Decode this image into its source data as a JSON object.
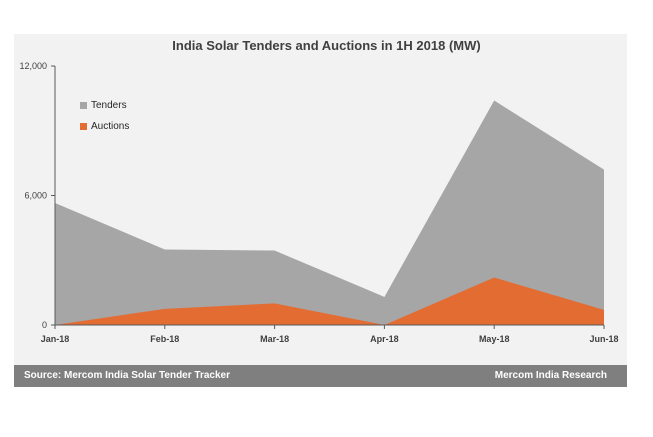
{
  "chart_data": {
    "type": "area",
    "title": "India Solar Tenders and Auctions in 1H 2018 (MW)",
    "categories": [
      "Jan-18",
      "Feb-18",
      "Mar-18",
      "Apr-18",
      "May-18",
      "Jun-18"
    ],
    "series": [
      {
        "name": "Tenders",
        "values": [
          5650,
          3500,
          3450,
          1300,
          10400,
          7200
        ],
        "color": "#a6a6a6"
      },
      {
        "name": "Auctions",
        "values": [
          0,
          750,
          1000,
          0,
          2200,
          700
        ],
        "color": "#e36c33"
      }
    ],
    "yticks": [
      "0",
      "6,000",
      "12,000"
    ],
    "ytick_values": [
      0,
      6000,
      12000
    ],
    "ylim": [
      0,
      12000
    ],
    "xlabel": "",
    "ylabel": "",
    "legend_position": "top-left",
    "grid": false
  },
  "footer": {
    "source": "Source: Mercom India Solar Tender Tracker",
    "brand": "Mercom India Research"
  },
  "colors": {
    "panel": "#f2f2f2",
    "footer": "#7f7f7f"
  }
}
